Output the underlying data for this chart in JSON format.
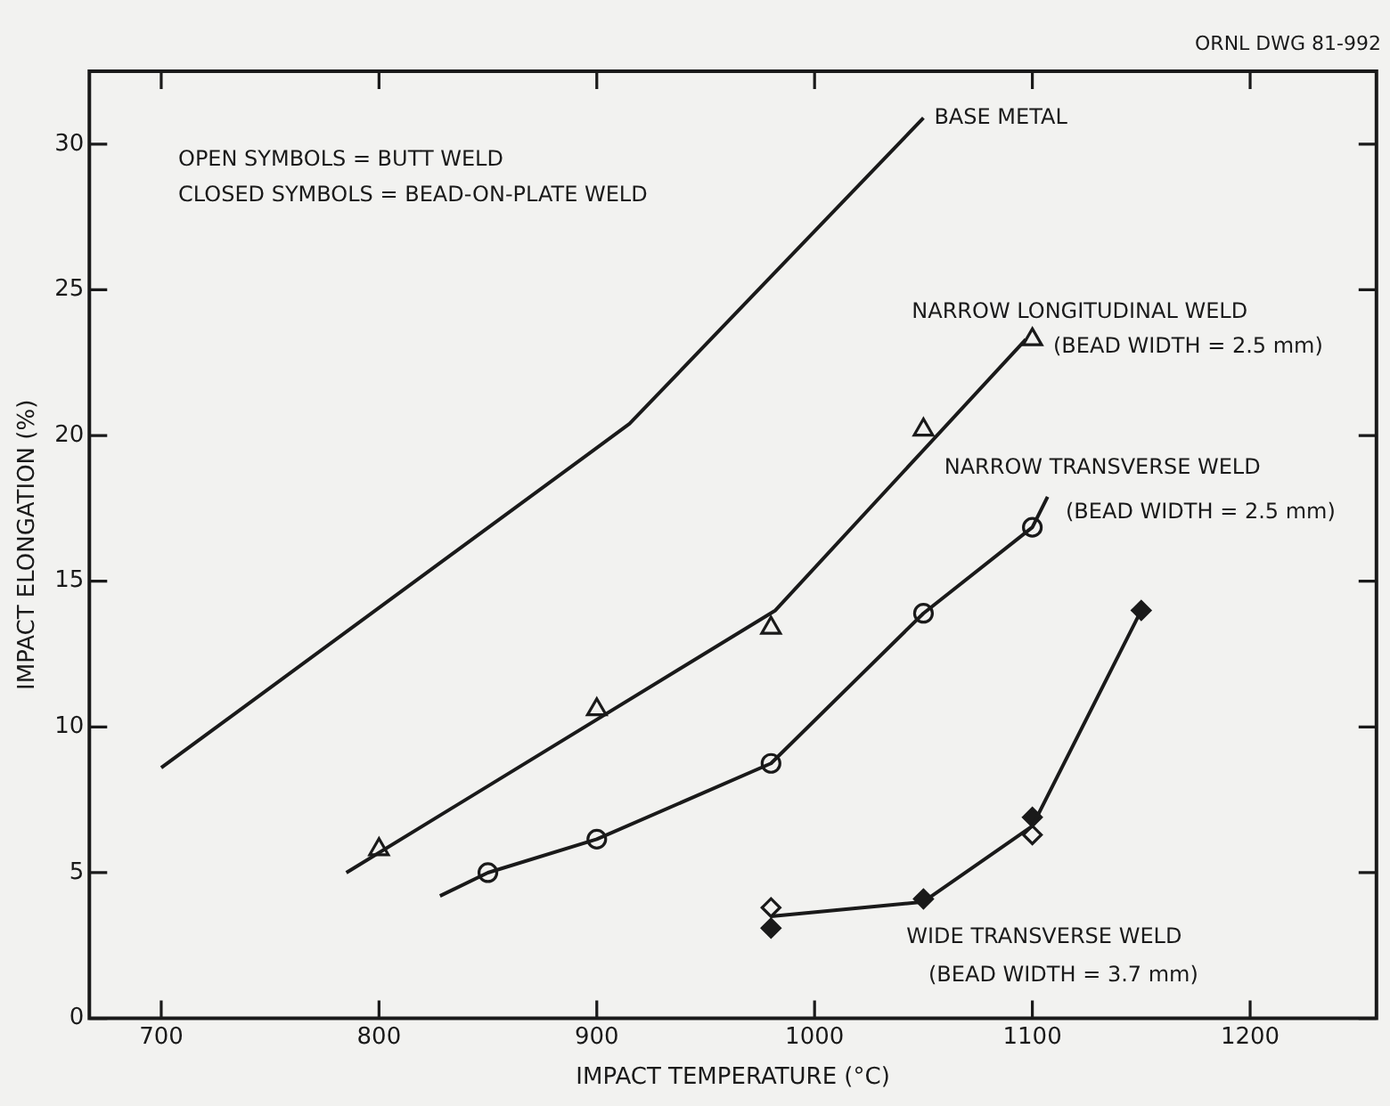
{
  "chart_data": {
    "type": "line",
    "xlabel": "IMPACT TEMPERATURE (°C)",
    "ylabel": "IMPACT ELONGATION (%)",
    "xlim": [
      667,
      1258
    ],
    "xticks": [
      700,
      800,
      900,
      1000,
      1100,
      1200
    ],
    "ylim": [
      0,
      32.5
    ],
    "yticks": [
      0,
      5,
      10,
      15,
      20,
      25,
      30
    ],
    "marker": "none",
    "line_style": "solid",
    "grid": false,
    "annotations": [
      "ORNL DWG 81-992",
      "OPEN SYMBOLS = BUTT WELD",
      "CLOSED SYMBOLS = BEAD-ON-PLATE WELD",
      "(BEAD WIDTH = 2.5 mm)",
      "(BEAD WIDTH = 2.5 mm)",
      "(BEAD WIDTH = 3.7 mm)"
    ],
    "series": [
      {
        "type": "line",
        "name": "BASE METAL",
        "color": "#1a1a1a",
        "x": [
          700,
          915,
          1050
        ],
        "values": [
          8.6,
          20.4,
          30.9
        ]
      },
      {
        "type": "line",
        "name": "NARROW LONGITUDINAL WELD",
        "color": "#1a1a1a",
        "x": [
          785,
          982,
          1097
        ],
        "values": [
          5.0,
          14.0,
          23.3
        ]
      },
      {
        "type": "scatter",
        "marker": "triangle",
        "color": "#1a1a1a",
        "x": [
          800,
          900,
          980,
          1050,
          1100
        ],
        "values": [
          5.8,
          10.6,
          13.4,
          20.2,
          23.3
        ]
      },
      {
        "type": "line",
        "name": "NARROW TRANSVERSE WELD",
        "color": "#1a1a1a",
        "x": [
          828,
          850,
          900,
          980,
          1050,
          1100,
          1107
        ],
        "values": [
          4.2,
          5.0,
          6.15,
          8.75,
          13.9,
          16.85,
          17.9
        ]
      },
      {
        "type": "scatter",
        "marker": "circle",
        "color": "#1a1a1a",
        "x": [
          850,
          900,
          980,
          1050,
          1100
        ],
        "values": [
          5.0,
          6.15,
          8.75,
          13.9,
          16.85
        ]
      },
      {
        "type": "line",
        "name": "WIDE TRANSVERSE WELD",
        "color": "#1a1a1a",
        "x": [
          980,
          1050,
          1100,
          1150
        ],
        "values": [
          3.5,
          4.0,
          6.6,
          14.0
        ]
      },
      {
        "type": "scatter",
        "marker": "diamond",
        "color": "#1a1a1a",
        "x": [
          980,
          1100
        ],
        "values": [
          3.8,
          6.3
        ]
      },
      {
        "type": "scatter",
        "marker": "diamond",
        "color": "#1a1a1a",
        "x": [
          980,
          1050,
          1100,
          1150
        ],
        "values": [
          3.1,
          4.1,
          6.9,
          14.0
        ]
      }
    ]
  }
}
